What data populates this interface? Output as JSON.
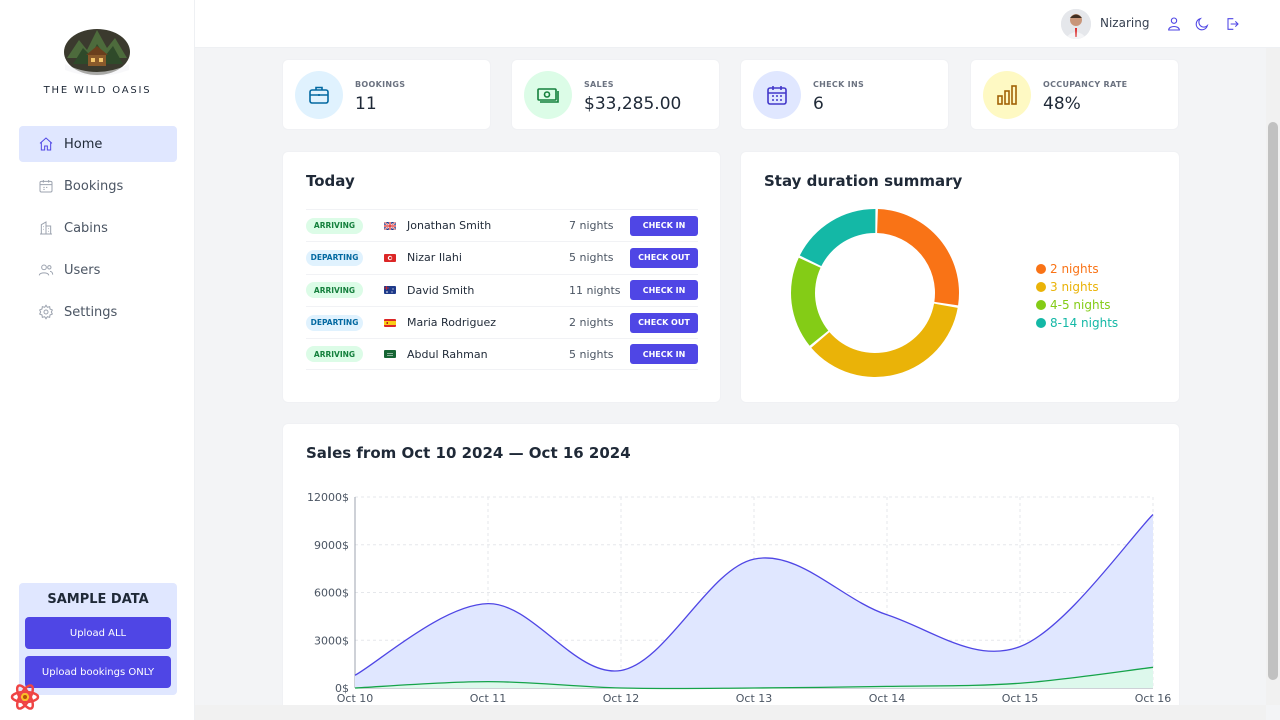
{
  "brand": {
    "name": "THE WILD OASIS"
  },
  "sidebar": {
    "items": [
      {
        "label": "Home",
        "icon": "home-icon",
        "active": true
      },
      {
        "label": "Bookings",
        "icon": "calendar-icon",
        "active": false
      },
      {
        "label": "Cabins",
        "icon": "building-icon",
        "active": false
      },
      {
        "label": "Users",
        "icon": "users-icon",
        "active": false
      },
      {
        "label": "Settings",
        "icon": "gear-icon",
        "active": false
      }
    ],
    "sample": {
      "title": "SAMPLE DATA",
      "upload_all": "Upload ALL",
      "upload_bookings": "Upload bookings ONLY"
    }
  },
  "header": {
    "username": "Nizaring"
  },
  "stats": [
    {
      "label": "BOOKINGS",
      "value": "11",
      "icon": "briefcase-icon",
      "bg": "#e0f2fe",
      "color": "#0369a1"
    },
    {
      "label": "SALES",
      "value": "$33,285.00",
      "icon": "banknotes-icon",
      "bg": "#dcfce7",
      "color": "#15803d"
    },
    {
      "label": "CHECK INS",
      "value": "6",
      "icon": "calendar-days-icon",
      "bg": "#e0e7ff",
      "color": "#4338ca"
    },
    {
      "label": "OCCUPANCY RATE",
      "value": "48%",
      "icon": "chart-bar-icon",
      "bg": "#fef9c3",
      "color": "#a16207"
    }
  ],
  "today": {
    "title": "Today",
    "rows": [
      {
        "status": "ARRIVING",
        "type": "arr",
        "flag": "uk",
        "guest": "Jonathan Smith",
        "nights": "7 nights",
        "action": "CHECK IN"
      },
      {
        "status": "DEPARTING",
        "type": "dep",
        "flag": "tn",
        "guest": "Nizar Ilahi",
        "nights": "5 nights",
        "action": "CHECK OUT"
      },
      {
        "status": "ARRIVING",
        "type": "arr",
        "flag": "au",
        "guest": "David Smith",
        "nights": "11 nights",
        "action": "CHECK IN"
      },
      {
        "status": "DEPARTING",
        "type": "dep",
        "flag": "es",
        "guest": "Maria Rodriguez",
        "nights": "2 nights",
        "action": "CHECK OUT"
      },
      {
        "status": "ARRIVING",
        "type": "arr",
        "flag": "sa",
        "guest": "Abdul Rahman",
        "nights": "5 nights",
        "action": "CHECK IN"
      }
    ]
  },
  "duration": {
    "title": "Stay duration summary"
  },
  "sales": {
    "title": "Sales from Oct 10 2024 — Oct 16 2024"
  },
  "chart_data": [
    {
      "type": "pie",
      "title": "Stay duration summary",
      "categories": [
        "2 nights",
        "3 nights",
        "4-5 nights",
        "8-14 nights"
      ],
      "values": [
        3,
        4,
        2,
        2
      ],
      "colors": [
        "#f97316",
        "#eab308",
        "#84cc16",
        "#14b8a6"
      ],
      "legend": "right"
    },
    {
      "type": "area",
      "title": "Sales from Oct 10 2024 — Oct 16 2024",
      "x": [
        "Oct 10",
        "Oct 11",
        "Oct 12",
        "Oct 13",
        "Oct 14",
        "Oct 15",
        "Oct 16"
      ],
      "ylim": [
        0,
        12000
      ],
      "yticks": [
        "0$",
        "3000$",
        "6000$",
        "9000$",
        "12000$"
      ],
      "series": [
        {
          "values": [
            800,
            5300,
            1100,
            8100,
            4600,
            2600,
            10900
          ],
          "color": "#4f46e5",
          "fill": "#e0e7ff"
        },
        {
          "values": [
            0,
            400,
            0,
            0,
            100,
            300,
            1300
          ],
          "color": "#16a34a",
          "fill": "#dcfce7"
        }
      ],
      "grid": true
    }
  ]
}
